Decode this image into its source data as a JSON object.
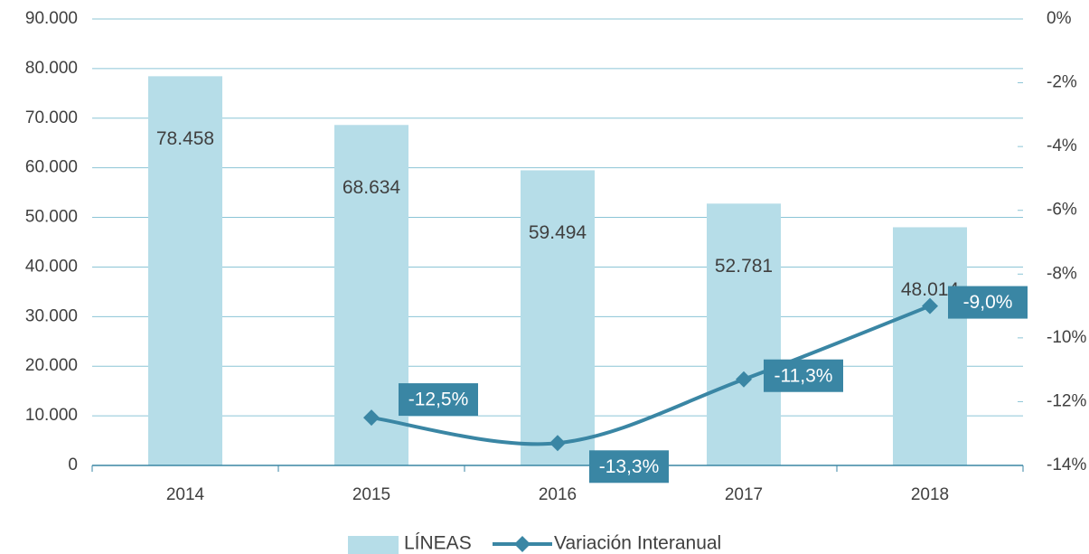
{
  "chart_data": {
    "type": "bar-line",
    "categories": [
      "2014",
      "2015",
      "2016",
      "2017",
      "2018"
    ],
    "series": [
      {
        "name": "LÍNEAS",
        "type": "bar",
        "color": "#b6dde8",
        "values": [
          78458,
          68634,
          59494,
          52781,
          48014
        ],
        "value_labels": [
          "78.458",
          "68.634",
          "59.494",
          "52.781",
          "48.014"
        ]
      },
      {
        "name": "Variación Interanual",
        "type": "line",
        "axis": "y2",
        "color": "#3a86a4",
        "values": [
          null,
          -12.5,
          -13.3,
          -11.3,
          -9.0
        ],
        "value_labels": [
          null,
          "-12,5%",
          "-13,3%",
          "-11,3%",
          "-9,0%"
        ]
      }
    ],
    "ylim": [
      0,
      90000
    ],
    "yticks": [
      0,
      {
        "value": 10000,
        "label": "10.000"
      },
      {
        "value": 20000,
        "label": "20.000"
      },
      {
        "value": 30000,
        "label": "30.000"
      },
      {
        "value": 40000,
        "label": "40.000"
      },
      {
        "value": 50000,
        "label": "50.000"
      },
      {
        "value": 60000,
        "label": "60.000"
      },
      {
        "value": 70000,
        "label": "70.000"
      },
      {
        "value": 80000,
        "label": "80.000"
      },
      {
        "value": 90000,
        "label": "90.000"
      }
    ],
    "y2lim": [
      -14,
      0
    ],
    "y2ticks": [
      {
        "value": -14,
        "label": "-14%"
      },
      {
        "value": -12,
        "label": "-12%"
      },
      {
        "value": -10,
        "label": "-10%"
      },
      {
        "value": -8,
        "label": "-8%"
      },
      {
        "value": -6,
        "label": "-6%"
      },
      {
        "value": -4,
        "label": "-4%"
      },
      {
        "value": -2,
        "label": "-2%"
      },
      {
        "value": 0,
        "label": "0%"
      }
    ],
    "grid": true,
    "legend": "bottom"
  }
}
